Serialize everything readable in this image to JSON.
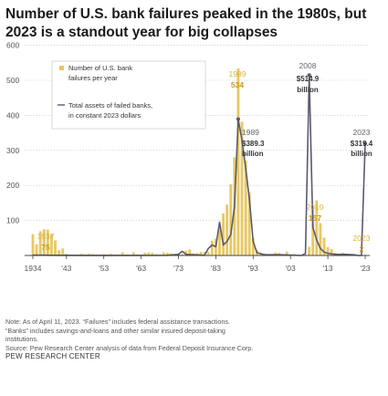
{
  "title": "Number of U.S. bank failures peaked in the 1980s, but 2023 is a standout year for big collapses",
  "chart_data": {
    "type": "bar",
    "ylim": [
      0,
      600
    ],
    "yticks": [
      "100",
      "200",
      "300",
      "400",
      "500",
      "600"
    ],
    "xticks": [
      "1934",
      "'43",
      "'53",
      "'63",
      "'73",
      "'83",
      "'93",
      "'03",
      "'13",
      "'23"
    ],
    "colors": {
      "bars": "#e7c862",
      "line": "#5a5a6e",
      "axis": "#888888"
    },
    "series": [
      {
        "name": "Number of U.S. bank failures per year",
        "type": "bar",
        "x": [
          1934,
          1935,
          1936,
          1937,
          1938,
          1939,
          1940,
          1941,
          1942,
          1943,
          1944,
          1945,
          1946,
          1947,
          1948,
          1949,
          1950,
          1951,
          1952,
          1953,
          1954,
          1955,
          1956,
          1957,
          1958,
          1959,
          1960,
          1961,
          1962,
          1963,
          1964,
          1965,
          1966,
          1967,
          1968,
          1969,
          1970,
          1971,
          1972,
          1973,
          1974,
          1975,
          1976,
          1977,
          1978,
          1979,
          1980,
          1981,
          1982,
          1983,
          1984,
          1985,
          1986,
          1987,
          1988,
          1989,
          1990,
          1991,
          1992,
          1993,
          1994,
          1995,
          1996,
          1997,
          1998,
          1999,
          2000,
          2001,
          2002,
          2003,
          2004,
          2005,
          2006,
          2007,
          2008,
          2009,
          2010,
          2011,
          2012,
          2013,
          2014,
          2015,
          2016,
          2017,
          2018,
          2019,
          2020,
          2021,
          2022,
          2023
        ],
        "values": [
          61,
          32,
          69,
          75,
          74,
          60,
          43,
          15,
          20,
          5,
          2,
          1,
          2,
          5,
          3,
          5,
          4,
          3,
          3,
          4,
          3,
          5,
          3,
          3,
          9,
          3,
          1,
          9,
          3,
          2,
          8,
          9,
          8,
          4,
          3,
          9,
          8,
          6,
          3,
          6,
          4,
          14,
          17,
          6,
          7,
          10,
          11,
          10,
          42,
          48,
          80,
          120,
          145,
          203,
          280,
          534,
          382,
          271,
          181,
          50,
          15,
          8,
          6,
          1,
          3,
          8,
          7,
          4,
          11,
          3,
          4,
          0,
          0,
          3,
          25,
          140,
          157,
          92,
          51,
          24,
          18,
          8,
          5,
          8,
          0,
          4,
          4,
          0,
          0,
          2
        ]
      },
      {
        "name": "Total assets of failed banks, in constant 2023 dollars",
        "type": "line",
        "unit": "billion",
        "x": [
          1934,
          1940,
          1950,
          1960,
          1970,
          1973,
          1974,
          1975,
          1977,
          1980,
          1981,
          1982,
          1983,
          1984,
          1985,
          1986,
          1987,
          1988,
          1989,
          1990,
          1991,
          1992,
          1993,
          1994,
          1996,
          2000,
          2003,
          2006,
          2007,
          2008,
          2009,
          2010,
          2011,
          2012,
          2013,
          2015,
          2018,
          2020,
          2021,
          2022,
          2023
        ],
        "values": [
          1,
          0.5,
          0.2,
          0.2,
          0.5,
          3,
          12,
          3,
          2,
          0.5,
          20,
          30,
          25,
          95,
          30,
          40,
          60,
          140,
          389.3,
          330,
          250,
          160,
          40,
          8,
          2,
          2,
          1,
          0,
          6,
          514.9,
          80,
          45,
          20,
          10,
          6,
          3,
          3,
          2,
          0,
          0,
          319.4
        ]
      }
    ],
    "annotations": [
      {
        "year": "1937",
        "value": "75"
      },
      {
        "year": "1989",
        "value": "534"
      },
      {
        "year": "1989",
        "value": "$389.3",
        "unit": "billion"
      },
      {
        "year": "2008",
        "value": "$514.9",
        "unit": "billion"
      },
      {
        "year": "2010",
        "value": "157"
      },
      {
        "year": "2023",
        "value": "$319.4",
        "unit": "billion"
      },
      {
        "year": "2023",
        "value": "2"
      }
    ],
    "legend": {
      "bar_label_1": "Number of U.S. bank",
      "bar_label_2": "failures per year",
      "line_label_1": "Total assets of failed banks,",
      "line_label_2": "in constant 2023 dollars"
    },
    "billion_label": "billion"
  },
  "notes": {
    "line1": "Note: As of April 11, 2023. “Failures” includes federal assistance transactions.",
    "line2": "“Banks” includes savings-and-loans and other similar insured deposit-taking",
    "line3": "institutions.",
    "source": "Source: Pew Research Center analysis of data from Federal Deposit Insurance Corp."
  },
  "credit": "PEW RESEARCH CENTER"
}
